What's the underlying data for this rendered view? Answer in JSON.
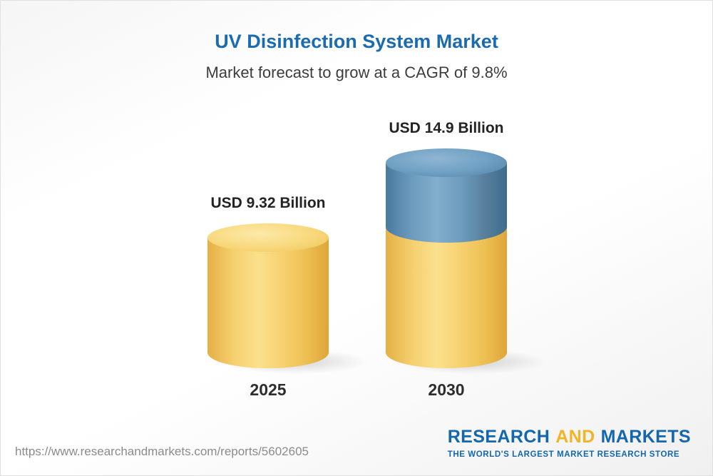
{
  "header": {
    "title": "UV Disinfection System Market",
    "subtitle": "Market forecast to grow at a CAGR of 9.8%"
  },
  "chart_data": {
    "type": "bar",
    "categories": [
      "2025",
      "2030"
    ],
    "values": [
      9.32,
      14.9
    ],
    "unit": "USD Billion",
    "value_labels": [
      "USD 9.32 Billion",
      "USD 14.9 Billion"
    ],
    "title": "UV Disinfection System Market",
    "subtitle": "Market forecast to grow at a CAGR of 9.8%",
    "cagr_percent": 9.8,
    "grid": false,
    "legend_position": "none",
    "colors": {
      "bar_2025": "#f3cd66",
      "bar_2030_base": "#f3cd66",
      "bar_2030_growth": "#5b8db3",
      "title_text": "#1b6bb1",
      "label_text": "#232323"
    }
  },
  "footer": {
    "url": "https://www.researchandmarkets.com/reports/5602605",
    "logo": {
      "research": "RESEARCH",
      "and": "AND",
      "markets": "MARKETS",
      "tagline": "THE WORLD'S LARGEST MARKET RESEARCH STORE"
    }
  }
}
